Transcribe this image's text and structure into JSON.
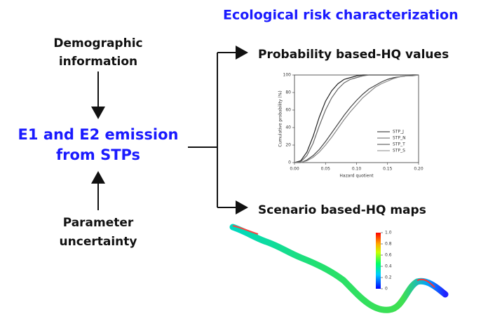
{
  "title": "Ecological risk characterization",
  "inputs": {
    "top": [
      "Demographic",
      "information"
    ],
    "bottom": [
      "Parameter",
      "uncertainty"
    ]
  },
  "center": [
    "E1 and E2 emission",
    "from STPs"
  ],
  "outputs": [
    "Probability based-HQ values",
    "Scenario based-HQ maps"
  ],
  "chart_data": {
    "type": "line",
    "x_label": "Hazard quotient",
    "y_label": "Cumulative probability (%)",
    "x": [
      0,
      0.01,
      0.02,
      0.03,
      0.04,
      0.05,
      0.06,
      0.07,
      0.08,
      0.09,
      0.1,
      0.11,
      0.12,
      0.13,
      0.14,
      0.15,
      0.16,
      0.17,
      0.18,
      0.19,
      0.2
    ],
    "series": [
      {
        "name": "STP_J",
        "color": "#222222",
        "values": [
          0,
          2,
          12,
          30,
          52,
          70,
          82,
          90,
          95,
          97,
          99,
          100,
          100,
          100,
          100,
          100,
          100,
          100,
          100,
          100,
          100
        ]
      },
      {
        "name": "STP_N",
        "color": "#666666",
        "values": [
          0,
          1,
          8,
          22,
          42,
          60,
          74,
          84,
          91,
          95,
          97,
          99,
          100,
          100,
          100,
          100,
          100,
          100,
          100,
          100,
          100
        ]
      },
      {
        "name": "STP_T",
        "color": "#444444",
        "values": [
          0,
          0,
          3,
          8,
          15,
          24,
          34,
          44,
          54,
          63,
          71,
          78,
          84,
          88,
          92,
          95,
          97,
          98,
          99,
          100,
          100
        ]
      },
      {
        "name": "STP_S",
        "color": "#888888",
        "values": [
          0,
          0,
          2,
          6,
          12,
          20,
          29,
          39,
          49,
          58,
          66,
          74,
          80,
          86,
          90,
          93,
          96,
          98,
          99,
          99,
          100
        ]
      }
    ],
    "xlim": [
      0,
      0.2
    ],
    "ylim": [
      0,
      100
    ],
    "xticks": [
      {
        "value": 0,
        "label": "0.00"
      },
      {
        "value": 0.05,
        "label": "0.05"
      },
      {
        "value": 0.1,
        "label": "0.10"
      },
      {
        "value": 0.15,
        "label": "0.15"
      },
      {
        "value": 0.2,
        "label": "0.20"
      }
    ],
    "yticks": [
      0,
      20,
      40,
      60,
      80,
      100
    ]
  },
  "colorbar": {
    "lim": [
      0,
      1
    ],
    "ticks": [
      {
        "value": 1,
        "label": "1.0"
      },
      {
        "value": 0.8,
        "label": "0.8"
      },
      {
        "value": 0.6,
        "label": "0.6"
      },
      {
        "value": 0.4,
        "label": "0.4"
      },
      {
        "value": 0.2,
        "label": "0.2"
      },
      0
    ]
  }
}
